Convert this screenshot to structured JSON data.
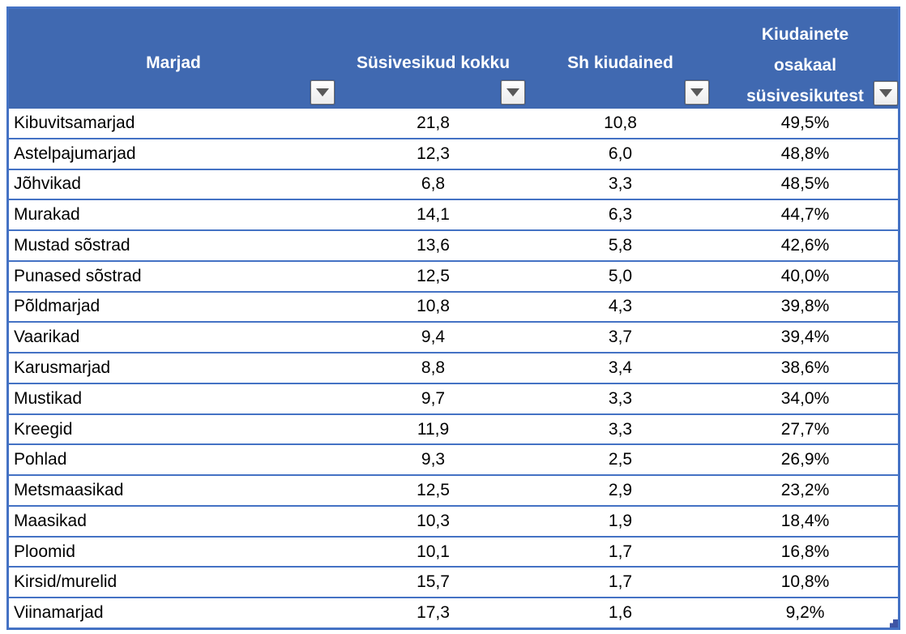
{
  "table": {
    "columns": [
      {
        "label": "Marjad"
      },
      {
        "label": "Süsivesikud kokku"
      },
      {
        "label": "Sh kiudained"
      },
      {
        "lines": [
          "Kiudainete",
          "osakaal",
          "süsivesikutest"
        ]
      }
    ],
    "rows": [
      {
        "name": "Kibuvitsamarjad",
        "carbs": "21,8",
        "fiber": "10,8",
        "fiber_pct": "49,5%"
      },
      {
        "name": "Astelpajumarjad",
        "carbs": "12,3",
        "fiber": "6,0",
        "fiber_pct": "48,8%"
      },
      {
        "name": "Jõhvikad",
        "carbs": "6,8",
        "fiber": "3,3",
        "fiber_pct": "48,5%"
      },
      {
        "name": "Murakad",
        "carbs": "14,1",
        "fiber": "6,3",
        "fiber_pct": "44,7%"
      },
      {
        "name": "Mustad sõstrad",
        "carbs": "13,6",
        "fiber": "5,8",
        "fiber_pct": "42,6%"
      },
      {
        "name": "Punased sõstrad",
        "carbs": "12,5",
        "fiber": "5,0",
        "fiber_pct": "40,0%"
      },
      {
        "name": "Põldmarjad",
        "carbs": "10,8",
        "fiber": "4,3",
        "fiber_pct": "39,8%"
      },
      {
        "name": "Vaarikad",
        "carbs": "9,4",
        "fiber": "3,7",
        "fiber_pct": "39,4%"
      },
      {
        "name": "Karusmarjad",
        "carbs": "8,8",
        "fiber": "3,4",
        "fiber_pct": "38,6%"
      },
      {
        "name": "Mustikad",
        "carbs": "9,7",
        "fiber": "3,3",
        "fiber_pct": "34,0%"
      },
      {
        "name": "Kreegid",
        "carbs": "11,9",
        "fiber": "3,3",
        "fiber_pct": "27,7%"
      },
      {
        "name": "Pohlad",
        "carbs": "9,3",
        "fiber": "2,5",
        "fiber_pct": "26,9%"
      },
      {
        "name": "Metsmaasikad",
        "carbs": "12,5",
        "fiber": "2,9",
        "fiber_pct": "23,2%"
      },
      {
        "name": "Maasikad",
        "carbs": "10,3",
        "fiber": "1,9",
        "fiber_pct": "18,4%"
      },
      {
        "name": "Ploomid",
        "carbs": "10,1",
        "fiber": "1,7",
        "fiber_pct": "16,8%"
      },
      {
        "name": "Kirsid/murelid",
        "carbs": "15,7",
        "fiber": "1,7",
        "fiber_pct": "10,8%"
      },
      {
        "name": "Viinamarjad",
        "carbs": "17,3",
        "fiber": "1,6",
        "fiber_pct": "9,2%"
      }
    ],
    "colors": {
      "header_bg": "#4069B1",
      "border": "#4472C4",
      "header_text": "#FFFFFF",
      "body_text": "#000000"
    }
  }
}
